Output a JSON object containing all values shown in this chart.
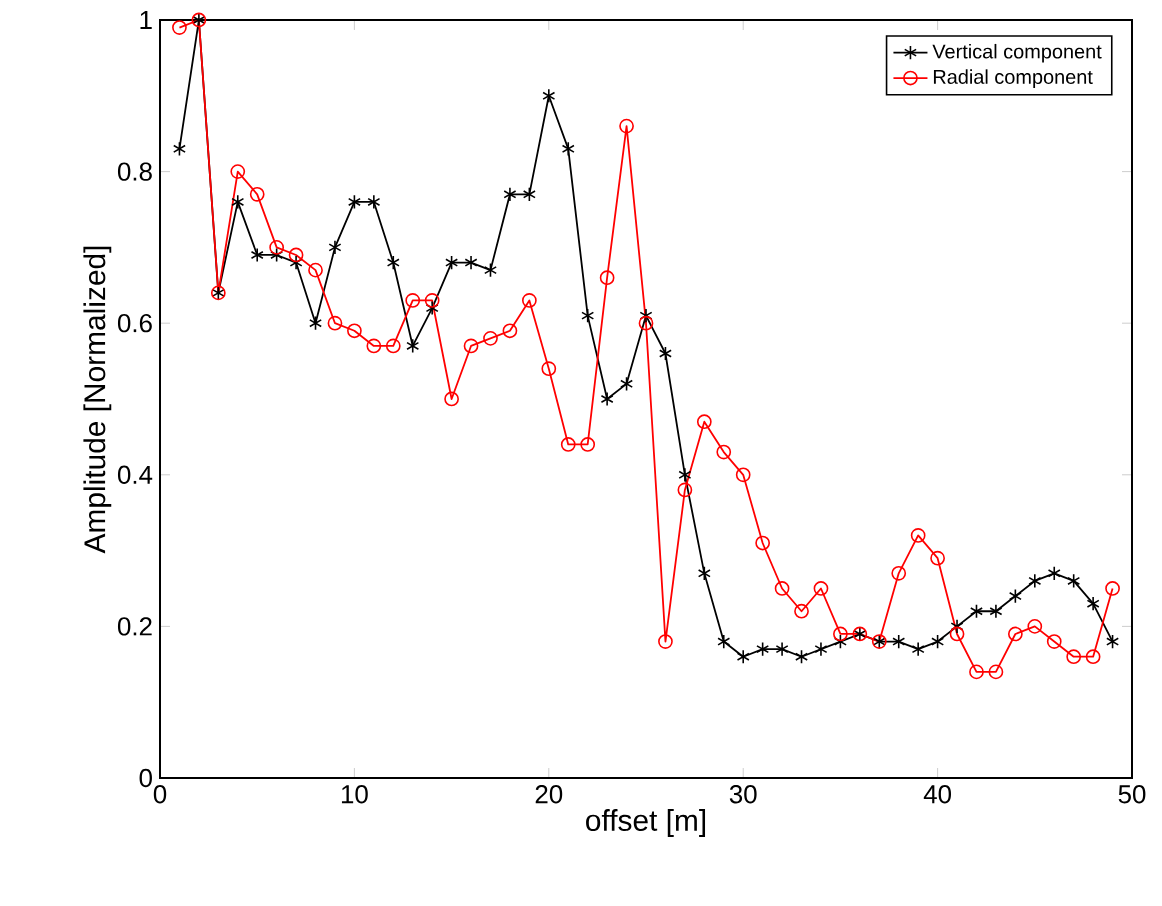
{
  "chart_data": {
    "type": "line",
    "xlabel": "offset [m]",
    "ylabel": "Amplitude [Normalized]",
    "x": [
      1,
      2,
      3,
      4,
      5,
      6,
      7,
      8,
      9,
      10,
      11,
      12,
      13,
      14,
      15,
      16,
      17,
      18,
      19,
      20,
      21,
      22,
      23,
      24,
      25,
      26,
      27,
      28,
      29,
      30,
      31,
      32,
      33,
      34,
      35,
      36,
      37,
      38,
      39,
      40,
      41,
      42,
      43,
      44,
      45,
      46,
      47,
      48,
      49
    ],
    "series": [
      {
        "name": "Vertical component",
        "color": "#000000",
        "marker": "cross",
        "values": [
          0.83,
          1.0,
          0.64,
          0.76,
          0.69,
          0.69,
          0.68,
          0.6,
          0.7,
          0.76,
          0.76,
          0.68,
          0.57,
          0.62,
          0.68,
          0.68,
          0.67,
          0.77,
          0.77,
          0.9,
          0.83,
          0.61,
          0.5,
          0.52,
          0.61,
          0.56,
          0.4,
          0.27,
          0.18,
          0.16,
          0.17,
          0.17,
          0.16,
          0.17,
          0.18,
          0.19,
          0.18,
          0.18,
          0.17,
          0.18,
          0.2,
          0.22,
          0.22,
          0.24,
          0.26,
          0.27,
          0.26,
          0.23,
          0.18
        ]
      },
      {
        "name": "Radial component",
        "color": "#ff0000",
        "marker": "circle",
        "values": [
          0.99,
          1.0,
          0.64,
          0.8,
          0.77,
          0.7,
          0.69,
          0.67,
          0.6,
          0.59,
          0.57,
          0.57,
          0.63,
          0.63,
          0.5,
          0.57,
          0.58,
          0.59,
          0.63,
          0.54,
          0.44,
          0.44,
          0.66,
          0.86,
          0.6,
          0.18,
          0.38,
          0.47,
          0.43,
          0.4,
          0.31,
          0.25,
          0.22,
          0.25,
          0.19,
          0.19,
          0.18,
          0.27,
          0.32,
          0.29,
          0.19,
          0.14,
          0.14,
          0.19,
          0.2,
          0.18,
          0.16,
          0.16,
          0.25
        ]
      }
    ],
    "xlim": [
      0,
      50
    ],
    "ylim": [
      0,
      1
    ],
    "xticks": [
      0,
      10,
      20,
      30,
      40,
      50
    ],
    "yticks": [
      0,
      0.2,
      0.4,
      0.6,
      0.8,
      1
    ],
    "grid": false,
    "legend": "top right",
    "line_style": "solid"
  }
}
